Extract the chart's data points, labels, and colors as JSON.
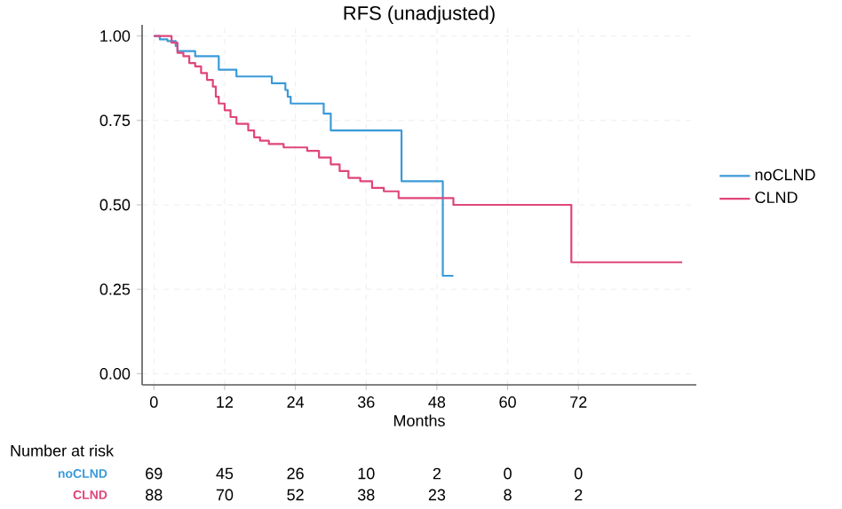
{
  "chart_data": {
    "type": "step",
    "title": "RFS (unadjusted)",
    "xlabel": "Months",
    "xlim": [
      -2,
      92
    ],
    "ylim": [
      -0.033,
      1.033
    ],
    "xticks": [
      0,
      12,
      24,
      36,
      48,
      60,
      72
    ],
    "yticks": [
      {
        "value": 0,
        "label": "0.00"
      },
      {
        "value": 0.25,
        "label": "0.25"
      },
      {
        "value": 0.5,
        "label": "0.50"
      },
      {
        "value": 0.75,
        "label": "0.75"
      },
      {
        "value": 1,
        "label": "1.00"
      }
    ],
    "grid": true,
    "legend": "right",
    "series": [
      {
        "name": "noCLND",
        "color": "#3a9ad9",
        "x": [
          0,
          1,
          2.3,
          3.7,
          4,
          7,
          11,
          14,
          20,
          22.3,
          22.7,
          23.2,
          28.8,
          30,
          42,
          49,
          50.8
        ],
        "values": [
          1,
          0.99,
          0.985,
          0.97,
          0.955,
          0.94,
          0.9,
          0.88,
          0.86,
          0.84,
          0.82,
          0.8,
          0.77,
          0.72,
          0.57,
          0.29,
          0.29
        ]
      },
      {
        "name": "CLND",
        "color": "#e0457b",
        "x": [
          0,
          3,
          4,
          5,
          6,
          7,
          8,
          9,
          10,
          10.5,
          11,
          12,
          13,
          14,
          16,
          17,
          18,
          19.5,
          22,
          26,
          28,
          30,
          31.5,
          33,
          35,
          37,
          39,
          41.5,
          50.8,
          70.8,
          89.6
        ],
        "values": [
          1,
          0.98,
          0.95,
          0.94,
          0.92,
          0.91,
          0.89,
          0.87,
          0.85,
          0.82,
          0.8,
          0.78,
          0.76,
          0.74,
          0.72,
          0.7,
          0.69,
          0.68,
          0.67,
          0.66,
          0.64,
          0.62,
          0.6,
          0.58,
          0.57,
          0.55,
          0.54,
          0.52,
          0.5,
          0.33,
          0.33
        ]
      }
    ],
    "annotations": [
      "Number at risk",
      "noCLND",
      "69",
      "45",
      "26",
      "10",
      "2",
      "0",
      "0",
      "CLND",
      "88",
      "70",
      "52",
      "38",
      "23",
      "8",
      "2"
    ]
  }
}
